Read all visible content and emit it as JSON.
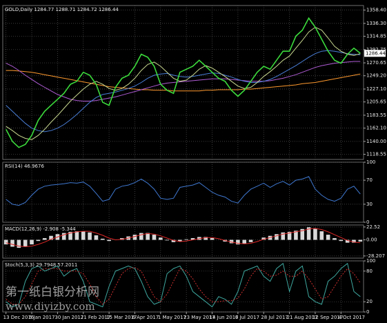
{
  "chart_data": [
    {
      "type": "line",
      "title": "GOLD,Daily 1284.77 1288.71 1284.72 1286.44",
      "grid": true,
      "last_price": 1286.44,
      "categories": [
        "13 Dec 2016",
        null,
        null,
        null,
        "6 Jan 2017",
        null,
        null,
        null,
        "30 Jan 2017",
        null,
        null,
        null,
        "21 Feb 2017",
        null,
        null,
        null,
        "15 Mar 2017",
        null,
        null,
        null,
        "6 Apr 2017",
        null,
        null,
        null,
        "1 May 2017",
        null,
        null,
        null,
        "23 May 2017",
        null,
        null,
        null,
        "14 Jun 2017",
        null,
        null,
        null,
        "6 Jul 2017",
        null,
        null,
        null,
        "28 Jul 2017",
        null,
        null,
        null,
        "21 Aug 2017",
        null,
        null,
        null,
        "12 Sep 2017",
        null,
        null,
        null,
        "4 Oct 2017",
        null,
        null,
        null
      ],
      "ylim": [
        1110,
        1366
      ],
      "yticks": [
        1118.55,
        {
          "value": 1140,
          "label": "1140.00"
        },
        {
          "value": 1162.1,
          "label": "1162.10"
        },
        1183.55,
        1205.65,
        {
          "value": 1227.1,
          "label": "1227.10"
        },
        {
          "value": 1249.2,
          "label": "1249.20"
        },
        1270.65,
        1292.75,
        1314.85,
        {
          "value": 1336.3,
          "label": "1336.30"
        },
        {
          "value": 1358.4,
          "label": "1358.40"
        }
      ],
      "series": [
        {
          "color": "#ff9a2e",
          "values": [
            1258,
            1258,
            1257,
            1256,
            1255,
            1253,
            1251,
            1249,
            1247,
            1245,
            1243,
            1241,
            1239,
            1237,
            1235,
            1233,
            1231,
            1230,
            1229,
            1228,
            1227,
            1226,
            1226,
            1225,
            1225,
            1225,
            1224,
            1224,
            1224,
            1224,
            1224,
            1225,
            1225,
            1226,
            1226,
            1226,
            1226,
            1227,
            1227,
            1228,
            1229,
            1230,
            1231,
            1232,
            1233,
            1234,
            1236,
            1237,
            1238,
            1240,
            1242,
            1244,
            1246,
            1248,
            1250,
            1252
          ]
        },
        {
          "color": "#b05cd6",
          "values": [
            1270,
            1265,
            1258,
            1250,
            1243,
            1236,
            1230,
            1224,
            1218,
            1214,
            1210,
            1208,
            1207,
            1207,
            1208,
            1210,
            1212,
            1214,
            1217,
            1220,
            1223,
            1226,
            1229,
            1232,
            1235,
            1237,
            1238,
            1239,
            1240,
            1241,
            1242,
            1243,
            1244,
            1244,
            1244,
            1243,
            1242,
            1241,
            1240,
            1240,
            1240,
            1241,
            1243,
            1245,
            1248,
            1251,
            1255,
            1259,
            1263,
            1266,
            1268,
            1270,
            1271,
            1272,
            1273,
            1273
          ]
        },
        {
          "color": "#4a7fd8",
          "values": [
            1200,
            1190,
            1180,
            1170,
            1162,
            1158,
            1156,
            1158,
            1162,
            1168,
            1176,
            1185,
            1195,
            1205,
            1213,
            1218,
            1220,
            1222,
            1225,
            1228,
            1232,
            1238,
            1245,
            1250,
            1252,
            1253,
            1250,
            1248,
            1247,
            1248,
            1250,
            1252,
            1254,
            1253,
            1250,
            1247,
            1243,
            1240,
            1238,
            1238,
            1240,
            1243,
            1248,
            1254,
            1260,
            1266,
            1273,
            1280,
            1286,
            1290,
            1291,
            1290,
            1288,
            1286,
            1285,
            1284
          ]
        },
        {
          "color": "#c8d890",
          "values": [
            1165,
            1158,
            1150,
            1145,
            1143,
            1150,
            1160,
            1172,
            1183,
            1195,
            1207,
            1217,
            1227,
            1235,
            1240,
            1235,
            1228,
            1225,
            1228,
            1235,
            1245,
            1258,
            1268,
            1272,
            1265,
            1255,
            1245,
            1240,
            1242,
            1250,
            1260,
            1266,
            1262,
            1255,
            1248,
            1240,
            1232,
            1228,
            1230,
            1238,
            1248,
            1256,
            1265,
            1275,
            1282,
            1295,
            1308,
            1322,
            1330,
            1325,
            1312,
            1298,
            1290,
            1285,
            1283,
            1286
          ]
        },
        {
          "color": "#3cdc3c",
          "values": [
            1160,
            1140,
            1130,
            1135,
            1150,
            1175,
            1190,
            1200,
            1210,
            1220,
            1235,
            1240,
            1255,
            1250,
            1235,
            1205,
            1200,
            1230,
            1245,
            1250,
            1265,
            1285,
            1280,
            1265,
            1235,
            1225,
            1220,
            1255,
            1260,
            1265,
            1275,
            1265,
            1255,
            1245,
            1240,
            1225,
            1215,
            1225,
            1240,
            1255,
            1265,
            1260,
            1275,
            1290,
            1290,
            1315,
            1325,
            1345,
            1330,
            1310,
            1290,
            1275,
            1270,
            1285,
            1295,
            1286.44
          ]
        }
      ]
    },
    {
      "type": "line",
      "title": "RSI(14) 46.9676",
      "grid": true,
      "ylim": [
        0,
        100
      ],
      "yticks": [
        100,
        70,
        30,
        0
      ],
      "series": [
        {
          "color": "#3f78d0",
          "values": [
            38,
            30,
            28,
            33,
            45,
            55,
            60,
            62,
            63,
            64,
            66,
            65,
            67,
            60,
            48,
            35,
            38,
            55,
            60,
            62,
            66,
            72,
            65,
            55,
            40,
            38,
            40,
            58,
            60,
            62,
            66,
            58,
            50,
            45,
            42,
            35,
            32,
            45,
            55,
            60,
            65,
            58,
            64,
            68,
            62,
            70,
            72,
            76,
            55,
            45,
            38,
            35,
            40,
            55,
            60,
            47
          ]
        }
      ]
    },
    {
      "type": "line",
      "title": "MACD(12,26,9) -2.908 -5.344",
      "grid": true,
      "ylim": [
        -32,
        26
      ],
      "yticks": [
        22.52,
        {
          "value": 0,
          "label": "0.00"
        },
        -28.207
      ],
      "series": [
        {
          "type": "bar",
          "color": "#d8d8d8",
          "values": [
            -8,
            -12,
            -14,
            -12,
            -8,
            -2,
            3,
            7,
            10,
            12,
            14,
            15,
            15,
            13,
            8,
            2,
            -2,
            0,
            3,
            6,
            9,
            12,
            12,
            9,
            4,
            -1,
            -4,
            -3,
            1,
            3,
            5,
            5,
            3,
            0,
            -3,
            -6,
            -8,
            -7,
            -4,
            0,
            4,
            7,
            10,
            13,
            14,
            16,
            19,
            22,
            20,
            15,
            9,
            3,
            -2,
            -5,
            -5,
            -3
          ]
        },
        {
          "color": "#e02828",
          "values": [
            -5,
            -8,
            -11,
            -12,
            -11,
            -8,
            -4,
            1,
            5,
            9,
            12,
            14,
            15,
            15,
            12,
            8,
            3,
            0,
            1,
            3,
            6,
            9,
            11,
            10,
            7,
            3,
            -1,
            -3,
            -2,
            0,
            2,
            4,
            4,
            2,
            -1,
            -4,
            -6,
            -7,
            -6,
            -3,
            1,
            4,
            7,
            10,
            12,
            14,
            16,
            19,
            20,
            18,
            14,
            9,
            4,
            -1,
            -4,
            -5
          ]
        }
      ]
    },
    {
      "type": "line",
      "title": "Stoch(5,3,3) 29.7948 57.2011",
      "grid": true,
      "ylim": [
        0,
        100
      ],
      "yticks": [
        100,
        80,
        20,
        0
      ],
      "series": [
        {
          "color": "#3fa8a0",
          "values": [
            20,
            10,
            15,
            60,
            85,
            90,
            80,
            85,
            90,
            70,
            80,
            85,
            60,
            20,
            15,
            10,
            50,
            80,
            85,
            90,
            85,
            60,
            30,
            15,
            20,
            75,
            85,
            90,
            70,
            40,
            30,
            20,
            10,
            30,
            25,
            15,
            40,
            80,
            85,
            90,
            70,
            60,
            85,
            95,
            40,
            80,
            90,
            30,
            20,
            15,
            60,
            70,
            85,
            95,
            40,
            30
          ]
        },
        {
          "color": "#d03030",
          "dashed": true,
          "values": [
            25,
            15,
            15,
            30,
            55,
            80,
            85,
            85,
            85,
            80,
            80,
            80,
            75,
            55,
            30,
            15,
            25,
            50,
            75,
            85,
            87,
            80,
            55,
            30,
            20,
            35,
            60,
            85,
            80,
            65,
            45,
            30,
            20,
            20,
            22,
            22,
            27,
            45,
            70,
            85,
            80,
            70,
            72,
            80,
            70,
            70,
            80,
            65,
            45,
            25,
            30,
            50,
            70,
            85,
            75,
            57
          ]
        }
      ]
    }
  ],
  "watermark": {
    "text": "第一纸白银分析网",
    "url": "www.diyizby.com"
  }
}
